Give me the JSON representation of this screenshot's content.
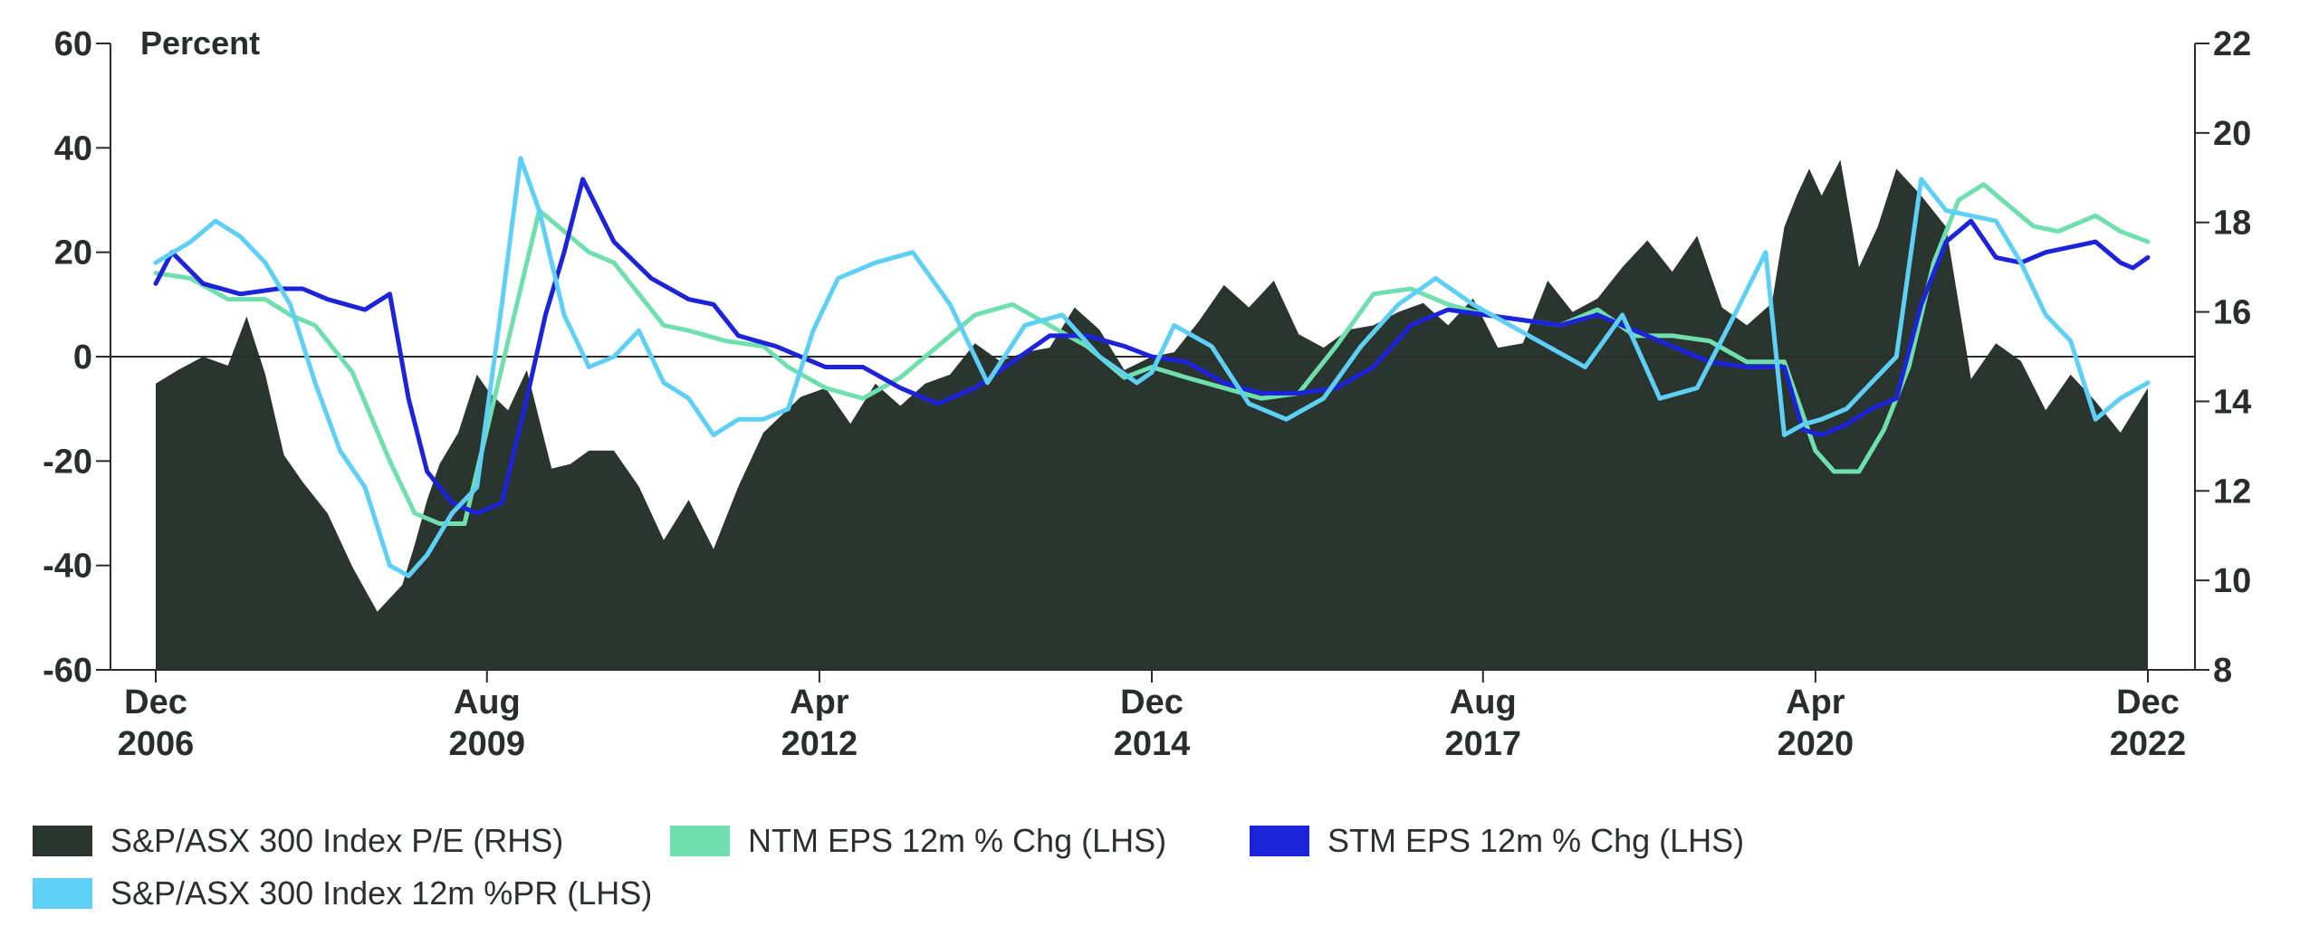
{
  "chart_data": {
    "type": "line+area",
    "title": "",
    "left_axis": {
      "label": "Percent",
      "ylim": [
        -60,
        60
      ],
      "ticks": [
        60,
        40,
        20,
        0,
        -20,
        -40,
        -60
      ]
    },
    "right_axis": {
      "label": "",
      "ylim": [
        8,
        22
      ],
      "ticks": [
        22,
        20,
        18,
        16,
        14,
        12,
        10,
        8
      ]
    },
    "x_range": [
      2006.92,
      2022.92
    ],
    "x_ticks": [
      {
        "x": 2006.92,
        "month": "Dec",
        "year": "2006"
      },
      {
        "x": 2009.58,
        "month": "Aug",
        "year": "2009"
      },
      {
        "x": 2012.25,
        "month": "Apr",
        "year": "2012"
      },
      {
        "x": 2014.92,
        "month": "Dec",
        "year": "2014"
      },
      {
        "x": 2017.58,
        "month": "Aug",
        "year": "2017"
      },
      {
        "x": 2020.25,
        "month": "Apr",
        "year": "2020"
      },
      {
        "x": 2022.92,
        "month": "Dec",
        "year": "2022"
      }
    ],
    "series": [
      {
        "name": "S&P/ASX 300 Index P/E (RHS)",
        "axis": "right",
        "type": "area",
        "color": "#2b3530",
        "x": [
          2006.92,
          2007.1,
          2007.3,
          2007.5,
          2007.65,
          2007.8,
          2007.95,
          2008.1,
          2008.3,
          2008.5,
          2008.7,
          2008.9,
          2009.0,
          2009.1,
          2009.2,
          2009.35,
          2009.5,
          2009.6,
          2009.75,
          2009.9,
          2010.1,
          2010.25,
          2010.4,
          2010.6,
          2010.8,
          2011.0,
          2011.2,
          2011.4,
          2011.6,
          2011.8,
          2011.95,
          2012.1,
          2012.3,
          2012.5,
          2012.7,
          2012.9,
          2013.1,
          2013.3,
          2013.5,
          2013.7,
          2013.9,
          2014.1,
          2014.3,
          2014.5,
          2014.7,
          2014.92,
          2015.1,
          2015.3,
          2015.5,
          2015.7,
          2015.9,
          2016.1,
          2016.3,
          2016.5,
          2016.7,
          2016.9,
          2017.1,
          2017.3,
          2017.5,
          2017.7,
          2017.9,
          2018.1,
          2018.3,
          2018.5,
          2018.7,
          2018.9,
          2019.1,
          2019.3,
          2019.5,
          2019.7,
          2019.9,
          2020.0,
          2020.1,
          2020.2,
          2020.3,
          2020.45,
          2020.6,
          2020.75,
          2020.9,
          2021.1,
          2021.3,
          2021.5,
          2021.7,
          2021.9,
          2022.1,
          2022.3,
          2022.5,
          2022.7,
          2022.92
        ],
        "values": [
          14.4,
          14.7,
          15.0,
          14.8,
          15.9,
          14.6,
          12.8,
          12.2,
          11.5,
          10.3,
          9.3,
          9.9,
          10.8,
          11.8,
          12.6,
          13.3,
          14.6,
          14.2,
          13.8,
          14.7,
          12.5,
          12.6,
          12.9,
          12.9,
          12.1,
          10.9,
          11.8,
          10.7,
          12.1,
          13.3,
          13.7,
          14.1,
          14.3,
          13.5,
          14.4,
          13.9,
          14.4,
          14.6,
          15.3,
          14.9,
          15.1,
          15.2,
          16.1,
          15.6,
          14.7,
          15.0,
          15.1,
          15.8,
          16.6,
          16.1,
          16.7,
          15.5,
          15.2,
          15.6,
          15.7,
          16.0,
          16.2,
          15.7,
          16.3,
          15.2,
          15.3,
          16.7,
          16.0,
          16.3,
          17.0,
          17.6,
          16.9,
          17.7,
          16.1,
          15.7,
          16.2,
          17.9,
          18.6,
          19.2,
          18.6,
          19.4,
          17.0,
          17.9,
          19.2,
          18.6,
          17.9,
          14.5,
          15.3,
          14.9,
          13.8,
          14.6,
          14.0,
          13.3,
          14.3
        ]
      },
      {
        "name": "NTM EPS 12m % Chg (LHS)",
        "axis": "left",
        "type": "line",
        "color": "#6fe0ad",
        "x": [
          2006.92,
          2007.2,
          2007.5,
          2007.8,
          2008.0,
          2008.2,
          2008.5,
          2008.8,
          2009.0,
          2009.2,
          2009.4,
          2009.6,
          2009.8,
          2010.0,
          2010.2,
          2010.4,
          2010.6,
          2010.8,
          2011.0,
          2011.2,
          2011.5,
          2011.8,
          2012.0,
          2012.3,
          2012.6,
          2012.9,
          2013.2,
          2013.5,
          2013.8,
          2014.1,
          2014.4,
          2014.7,
          2014.92,
          2015.2,
          2015.5,
          2015.8,
          2016.1,
          2016.4,
          2016.7,
          2017.0,
          2017.3,
          2017.6,
          2017.9,
          2018.2,
          2018.5,
          2018.8,
          2019.1,
          2019.4,
          2019.7,
          2020.0,
          2020.25,
          2020.4,
          2020.6,
          2020.8,
          2021.0,
          2021.2,
          2021.4,
          2021.6,
          2021.8,
          2022.0,
          2022.2,
          2022.5,
          2022.7,
          2022.92
        ],
        "values": [
          16,
          15,
          11,
          11,
          8,
          6,
          -3,
          -20,
          -30,
          -32,
          -32,
          -12,
          8,
          28,
          24,
          20,
          18,
          12,
          6,
          5,
          3,
          2,
          -2,
          -6,
          -8,
          -4,
          2,
          8,
          10,
          6,
          2,
          -4,
          -2,
          -4,
          -6,
          -8,
          -7,
          2,
          12,
          13,
          10,
          8,
          7,
          6,
          9,
          4,
          4,
          3,
          -1,
          -1,
          -18,
          -22,
          -22,
          -14,
          -2,
          18,
          30,
          33,
          29,
          25,
          24,
          27,
          24,
          22
        ]
      },
      {
        "name": "STM EPS 12m % Chg (LHS)",
        "axis": "left",
        "type": "line",
        "color": "#1d23d8",
        "x": [
          2006.92,
          2007.05,
          2007.3,
          2007.6,
          2007.9,
          2008.1,
          2008.3,
          2008.6,
          2008.8,
          2008.95,
          2009.1,
          2009.3,
          2009.5,
          2009.7,
          2009.9,
          2010.05,
          2010.2,
          2010.35,
          2010.6,
          2010.9,
          2011.2,
          2011.4,
          2011.6,
          2011.9,
          2012.1,
          2012.3,
          2012.6,
          2012.9,
          2013.2,
          2013.5,
          2013.8,
          2014.1,
          2014.4,
          2014.7,
          2014.92,
          2015.2,
          2015.5,
          2015.8,
          2016.1,
          2016.4,
          2016.7,
          2017.0,
          2017.3,
          2017.6,
          2017.9,
          2018.2,
          2018.5,
          2018.8,
          2019.1,
          2019.4,
          2019.7,
          2020.0,
          2020.15,
          2020.3,
          2020.5,
          2020.7,
          2020.9,
          2021.1,
          2021.3,
          2021.5,
          2021.7,
          2021.9,
          2022.1,
          2022.3,
          2022.5,
          2022.7,
          2022.8,
          2022.92
        ],
        "values": [
          14,
          20,
          14,
          12,
          13,
          13,
          11,
          9,
          12,
          -8,
          -22,
          -28,
          -30,
          -28,
          -8,
          8,
          20,
          34,
          22,
          15,
          11,
          10,
          4,
          2,
          0,
          -2,
          -2,
          -6,
          -9,
          -6,
          -1,
          4,
          4,
          2,
          0,
          -1,
          -5,
          -7,
          -7,
          -6,
          -2,
          6,
          9,
          8,
          7,
          6,
          8,
          5,
          2,
          -1,
          -2,
          -2,
          -14,
          -15,
          -13,
          -10,
          -8,
          10,
          22,
          26,
          19,
          18,
          20,
          21,
          22,
          18,
          17,
          19
        ]
      },
      {
        "name": "S&P/ASX 300 Index 12m %PR (LHS)",
        "axis": "left",
        "type": "line",
        "color": "#5fd0f5",
        "x": [
          2006.92,
          2007.2,
          2007.4,
          2007.6,
          2007.8,
          2008.0,
          2008.2,
          2008.4,
          2008.6,
          2008.8,
          2008.95,
          2009.1,
          2009.3,
          2009.5,
          2009.7,
          2009.85,
          2010.0,
          2010.2,
          2010.4,
          2010.6,
          2010.8,
          2011.0,
          2011.2,
          2011.4,
          2011.6,
          2011.8,
          2012.0,
          2012.2,
          2012.4,
          2012.7,
          2013.0,
          2013.3,
          2013.6,
          2013.9,
          2014.2,
          2014.5,
          2014.8,
          2014.92,
          2015.1,
          2015.4,
          2015.7,
          2016.0,
          2016.3,
          2016.6,
          2016.9,
          2017.2,
          2017.5,
          2017.8,
          2018.1,
          2018.4,
          2018.7,
          2019.0,
          2019.3,
          2019.6,
          2019.85,
          2020.0,
          2020.15,
          2020.3,
          2020.5,
          2020.7,
          2020.9,
          2021.1,
          2021.3,
          2021.5,
          2021.7,
          2021.9,
          2022.1,
          2022.3,
          2022.5,
          2022.7,
          2022.92
        ],
        "values": [
          18,
          22,
          26,
          23,
          18,
          10,
          -5,
          -18,
          -25,
          -40,
          -42,
          -38,
          -30,
          -25,
          10,
          38,
          28,
          8,
          -2,
          0,
          5,
          -5,
          -8,
          -15,
          -12,
          -12,
          -10,
          5,
          15,
          18,
          20,
          10,
          -5,
          6,
          8,
          0,
          -5,
          -3,
          6,
          2,
          -9,
          -12,
          -8,
          2,
          10,
          15,
          10,
          6,
          2,
          -2,
          8,
          -8,
          -6,
          8,
          20,
          -15,
          -13,
          -12,
          -10,
          -5,
          0,
          34,
          28,
          27,
          26,
          18,
          8,
          3,
          -12,
          -8,
          -5
        ]
      }
    ]
  },
  "legend": {
    "items": [
      {
        "label": "S&P/ASX 300 Index P/E (RHS)",
        "color": "#2b3530"
      },
      {
        "label": "NTM EPS 12m % Chg (LHS)",
        "color": "#6fe0ad"
      },
      {
        "label": "STM EPS 12m % Chg (LHS)",
        "color": "#1d23d8"
      },
      {
        "label": "S&P/ASX 300 Index 12m %PR (LHS)",
        "color": "#5fd0f5"
      }
    ]
  }
}
